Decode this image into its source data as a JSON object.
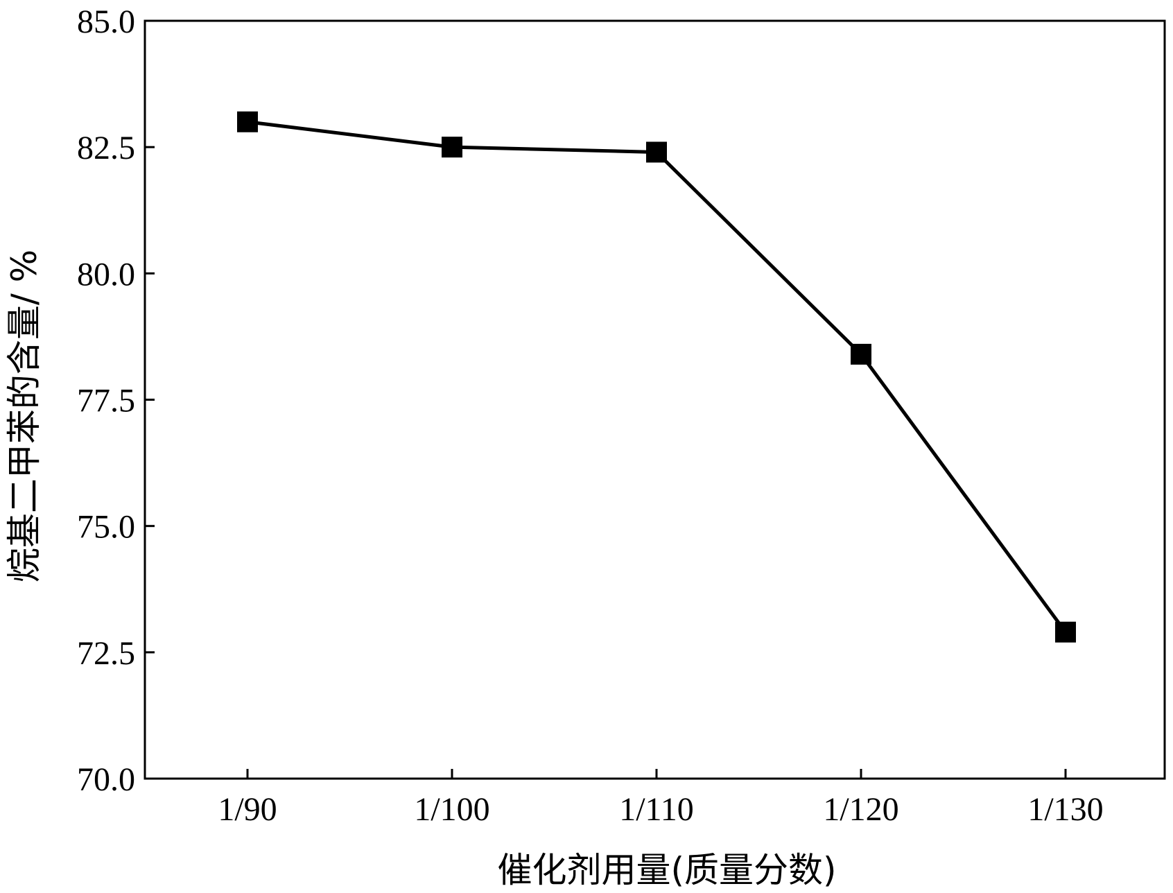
{
  "chart_data": {
    "type": "line",
    "title": "",
    "xlabel": "催化剂用量(质量分数)",
    "ylabel": "烷基二甲苯的含量/ %",
    "categories": [
      "1/90",
      "1/100",
      "1/110",
      "1/120",
      "1/130"
    ],
    "series": [
      {
        "name": "",
        "values": [
          83.0,
          82.5,
          82.4,
          78.4,
          72.9
        ],
        "marker": "square",
        "color": "#000000"
      }
    ],
    "ylim": [
      70.0,
      85.0
    ],
    "yticks": [
      "70.0",
      "72.5",
      "75.0",
      "77.5",
      "80.0",
      "82.5",
      "85.0"
    ],
    "grid": false,
    "legend": "none"
  }
}
